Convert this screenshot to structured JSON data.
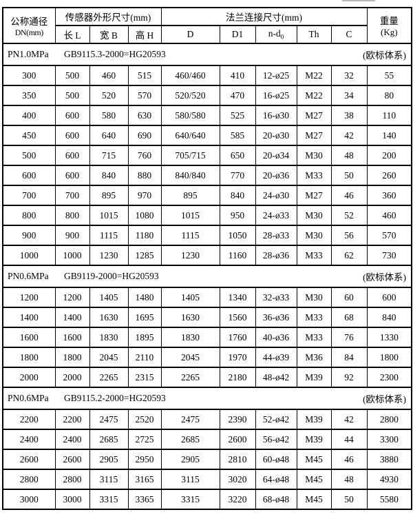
{
  "table": {
    "header": {
      "dn_line1": "公称通径",
      "dn_line2": "DN(mm)",
      "sensor_group": "传感器外形尺寸(mm)",
      "sensor_cols": [
        "长 L",
        "宽 B",
        "高 H"
      ],
      "flange_group": "法兰连接尺寸(mm)",
      "flange_cols": [
        "D",
        "D1",
        {
          "main": "n-d",
          "sub": "0"
        },
        "Th",
        "C"
      ],
      "weight_line1": "重量",
      "weight_line2": "(Kg)"
    },
    "sections": [
      {
        "pressure": "PN1.0MPa",
        "standard": "GB9115.3-2000=HG20593",
        "note": "(欧标体系)",
        "rows": [
          [
            "300",
            "500",
            "460",
            "515",
            "460/460",
            "410",
            "12-ø25",
            "M22",
            "32",
            "55"
          ],
          [
            "350",
            "500",
            "520",
            "570",
            "520/520",
            "470",
            "16-ø25",
            "M22",
            "34",
            "80"
          ],
          [
            "400",
            "600",
            "580",
            "630",
            "580/580",
            "525",
            "16-ø30",
            "M27",
            "38",
            "110"
          ],
          [
            "450",
            "600",
            "640",
            "690",
            "640/640",
            "585",
            "20-ø30",
            "M27",
            "42",
            "140"
          ],
          [
            "500",
            "600",
            "715",
            "760",
            "705/715",
            "650",
            "20-ø34",
            "M30",
            "48",
            "200"
          ],
          [
            "600",
            "600",
            "840",
            "880",
            "840/840",
            "770",
            "20-ø36",
            "M33",
            "50",
            "260"
          ],
          [
            "700",
            "700",
            "895",
            "970",
            "895",
            "840",
            "24-ø30",
            "M27",
            "46",
            "360"
          ],
          [
            "800",
            "800",
            "1015",
            "1080",
            "1015",
            "950",
            "24-ø33",
            "M30",
            "52",
            "460"
          ],
          [
            "900",
            "900",
            "1115",
            "1180",
            "1115",
            "1050",
            "28-ø33",
            "M30",
            "56",
            "570"
          ],
          [
            "1000",
            "1000",
            "1230",
            "1285",
            "1230",
            "1160",
            "28-ø36",
            "M33",
            "62",
            "730"
          ]
        ]
      },
      {
        "pressure": "PN0.6MPa",
        "standard": "GB9119-2000=HG20593",
        "note": "(欧标体系)",
        "rows": [
          [
            "1200",
            "1200",
            "1405",
            "1480",
            "1405",
            "1340",
            "32-ø33",
            "M30",
            "60",
            "600"
          ],
          [
            "1400",
            "1400",
            "1630",
            "1695",
            "1630",
            "1560",
            "36-ø36",
            "M33",
            "68",
            "840"
          ],
          [
            "1600",
            "1600",
            "1830",
            "1895",
            "1830",
            "1760",
            "40-ø36",
            "M33",
            "76",
            "1330"
          ],
          [
            "1800",
            "1800",
            "2045",
            "2110",
            "2045",
            "1970",
            "44-ø39",
            "M36",
            "84",
            "1800"
          ],
          [
            "2000",
            "2000",
            "2265",
            "2315",
            "2265",
            "2180",
            "48-ø42",
            "M39",
            "92",
            "2300"
          ]
        ]
      },
      {
        "pressure": "PN0.6MPa",
        "standard": "GB9115.2-2000=HG20593",
        "note": "(欧标体系)",
        "rows": [
          [
            "2200",
            "2200",
            "2475",
            "2520",
            "2475",
            "2390",
            "52-ø42",
            "M39",
            "42",
            "2800"
          ],
          [
            "2400",
            "2400",
            "2685",
            "2725",
            "2685",
            "2600",
            "56-ø42",
            "M39",
            "44",
            "3300"
          ],
          [
            "2600",
            "2600",
            "2905",
            "2950",
            "2905",
            "2810",
            "60-ø48",
            "M45",
            "46",
            "3880"
          ],
          [
            "2800",
            "2800",
            "3115",
            "3165",
            "3115",
            "3020",
            "64-ø48",
            "M45",
            "48",
            "4930"
          ],
          [
            "3000",
            "3000",
            "3315",
            "3365",
            "3315",
            "3220",
            "68-ø48",
            "M45",
            "50",
            "5580"
          ]
        ]
      }
    ]
  }
}
